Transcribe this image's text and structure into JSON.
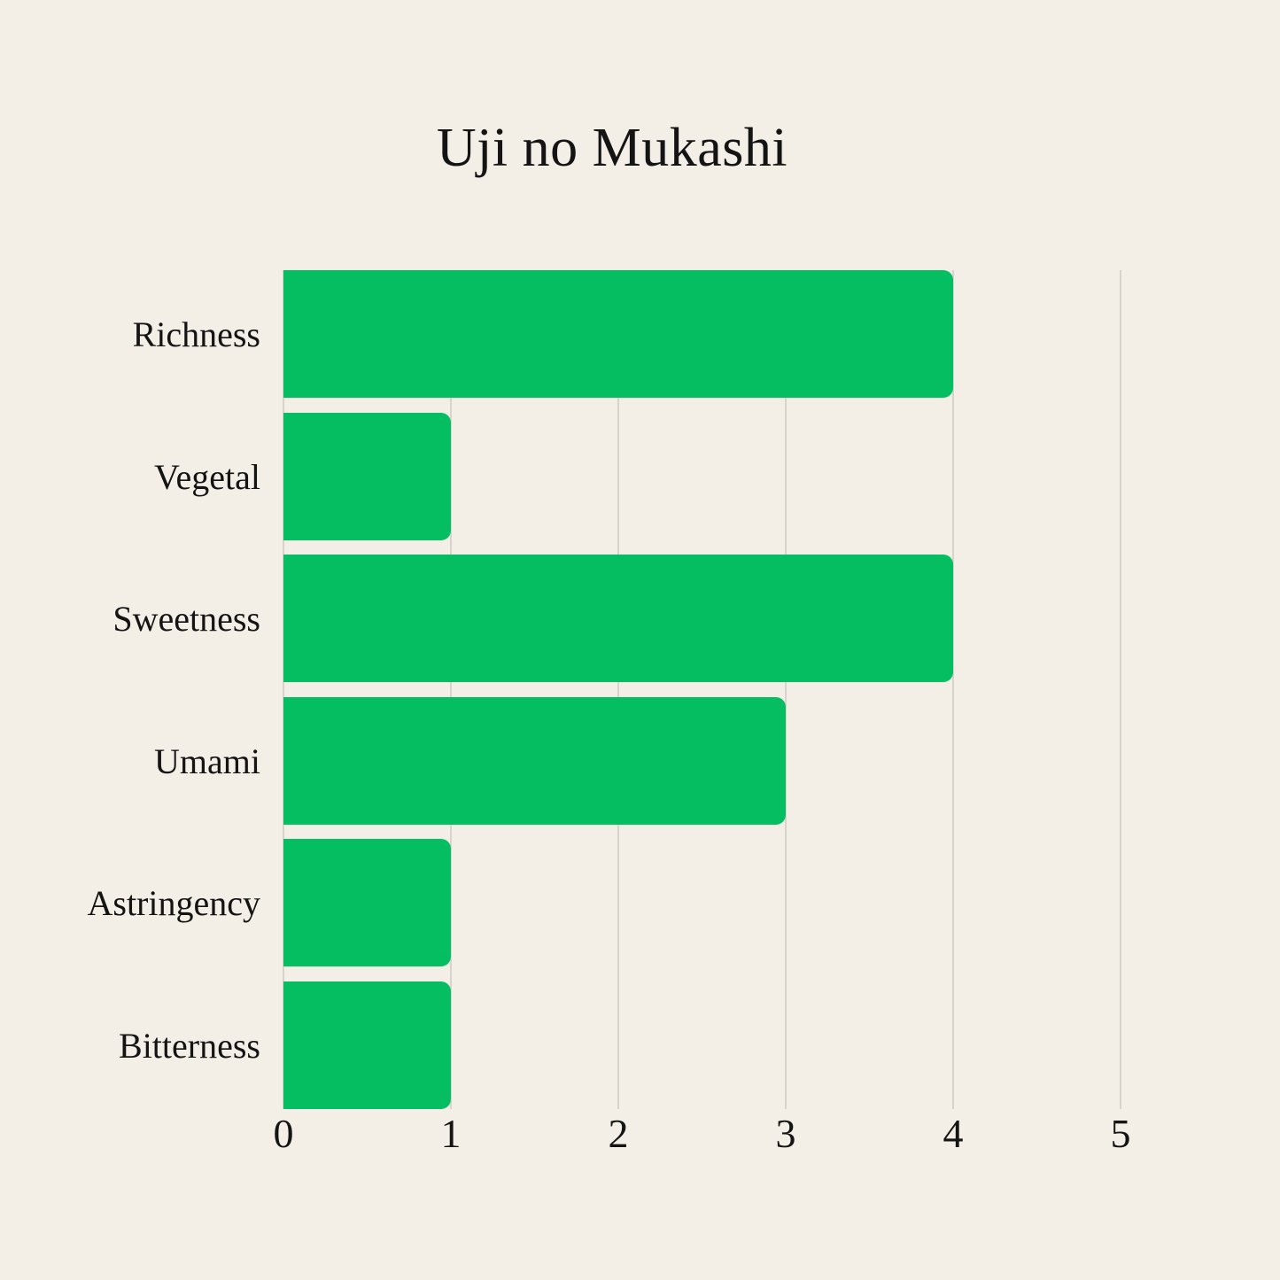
{
  "chart_data": {
    "type": "bar",
    "orientation": "horizontal",
    "title": "Uji no Mukashi",
    "categories": [
      "Richness",
      "Vegetal",
      "Sweetness",
      "Umami",
      "Astringency",
      "Bitterness"
    ],
    "values": [
      4,
      1,
      4,
      3,
      1,
      1
    ],
    "series": [
      {
        "name": "Uji no Mukashi",
        "values": [
          4,
          1,
          4,
          3,
          1,
          1
        ]
      }
    ],
    "xlabel": "",
    "ylabel": "",
    "xlim": [
      0,
      5
    ],
    "x_ticks": [
      "0",
      "1",
      "2",
      "3",
      "4",
      "5"
    ],
    "grid": "vertical gridlines only, drawn behind bars",
    "legend_position": "none",
    "colors": {
      "bar": "#06BE62",
      "background": "#F3EFE7",
      "gridline": "#D8D4CB",
      "text": "#141414"
    }
  }
}
